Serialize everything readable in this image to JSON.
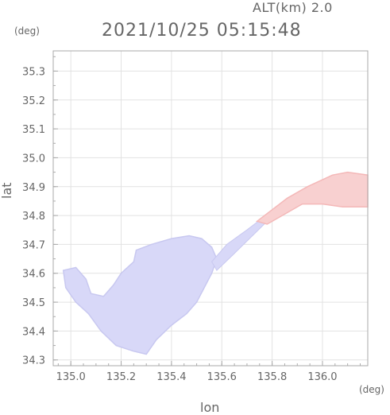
{
  "header": {
    "altitude_label": "ALT(km) 2.0",
    "timestamp": "2021/10/25 05:15:48"
  },
  "axes": {
    "x_title": "lon",
    "y_title": "lat",
    "x_unit": "(deg)",
    "y_unit": "(deg)",
    "x_ticks": [
      "135.0",
      "135.2",
      "135.4",
      "135.6",
      "135.8",
      "136.0"
    ],
    "y_ticks": [
      "35.3",
      "35.2",
      "35.1",
      "35.0",
      "34.9",
      "34.8",
      "34.7",
      "34.6",
      "34.5",
      "34.4",
      "34.3"
    ]
  },
  "map_data": {
    "type": "scalar-field-map",
    "xlim": [
      134.93,
      136.18
    ],
    "ylim": [
      34.28,
      35.37
    ],
    "x_tick_values": [
      135.0,
      135.2,
      135.4,
      135.6,
      135.8,
      136.0
    ],
    "y_tick_values": [
      35.3,
      35.2,
      35.1,
      35.0,
      34.9,
      34.8,
      34.7,
      34.6,
      34.5,
      34.4,
      34.3
    ],
    "grid": true,
    "colors": {
      "negative": "#d8d8f8",
      "negative_dark": "#c8c8f0",
      "positive": "#f8d0d0",
      "positive_dark": "#f4b8b8",
      "frame": "#aaaaaa"
    },
    "blue_region": [
      [
        134.97,
        34.61
      ],
      [
        135.02,
        34.62
      ],
      [
        135.06,
        34.58
      ],
      [
        135.08,
        34.53
      ],
      [
        135.13,
        34.52
      ],
      [
        135.17,
        34.56
      ],
      [
        135.2,
        34.6
      ],
      [
        135.25,
        34.64
      ],
      [
        135.26,
        34.68
      ],
      [
        135.32,
        34.7
      ],
      [
        135.4,
        34.72
      ],
      [
        135.47,
        34.73
      ],
      [
        135.52,
        34.72
      ],
      [
        135.56,
        34.69
      ],
      [
        135.58,
        34.65
      ],
      [
        135.56,
        34.6
      ],
      [
        135.53,
        34.55
      ],
      [
        135.5,
        34.5
      ],
      [
        135.46,
        34.46
      ],
      [
        135.4,
        34.42
      ],
      [
        135.34,
        34.37
      ],
      [
        135.3,
        34.32
      ],
      [
        135.25,
        34.33
      ],
      [
        135.18,
        34.35
      ],
      [
        135.12,
        34.4
      ],
      [
        135.07,
        34.46
      ],
      [
        135.02,
        34.5
      ],
      [
        134.98,
        34.55
      ]
    ],
    "blue_strip": [
      [
        135.56,
        34.64
      ],
      [
        135.62,
        34.7
      ],
      [
        135.7,
        34.75
      ],
      [
        135.76,
        34.79
      ],
      [
        135.78,
        34.78
      ],
      [
        135.71,
        34.72
      ],
      [
        135.64,
        34.66
      ],
      [
        135.58,
        34.61
      ]
    ],
    "red_region": [
      [
        135.74,
        34.78
      ],
      [
        135.8,
        34.82
      ],
      [
        135.86,
        34.86
      ],
      [
        135.94,
        34.9
      ],
      [
        136.04,
        34.94
      ],
      [
        136.1,
        34.95
      ],
      [
        136.18,
        34.94
      ],
      [
        136.18,
        34.83
      ],
      [
        136.08,
        34.83
      ],
      [
        136.0,
        34.84
      ],
      [
        135.92,
        34.84
      ],
      [
        135.84,
        34.8
      ],
      [
        135.78,
        34.77
      ]
    ]
  }
}
